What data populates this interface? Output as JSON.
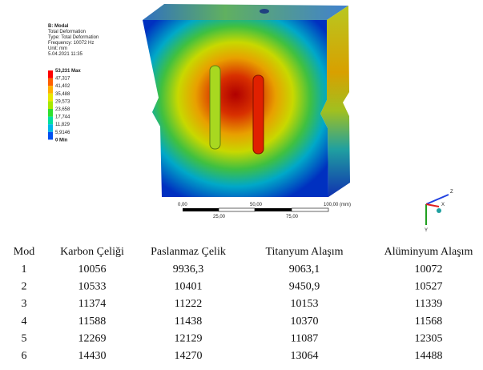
{
  "figure": {
    "legend_header": [
      "B: Modal",
      "Total Deformation",
      "Type: Total Deformation",
      "Frequency: 10072 Hz",
      "Unit: mm",
      "5.04.2021 11:35"
    ],
    "legend_labels": [
      "53,231 Max",
      "47,317",
      "41,402",
      "35,488",
      "29,573",
      "23,658",
      "17,744",
      "11,829",
      "5,9146",
      "0 Min"
    ],
    "legend_colors": [
      "#ff0000",
      "#ff6000",
      "#ffb000",
      "#e8e800",
      "#a8e800",
      "#30e030",
      "#00e0a0",
      "#00b8e8",
      "#0050f0"
    ],
    "scale_top": [
      "0,00",
      "50,00",
      "100,00 (mm)"
    ],
    "scale_bottom": [
      "25,00",
      "75,00"
    ],
    "triad": [
      "Z",
      "Y",
      "X"
    ]
  },
  "table": {
    "header": [
      "Mod",
      "Karbon Çeliği",
      "Paslanmaz Çelik",
      "Titanyum Alaşım",
      "Alüminyum Alaşım"
    ],
    "rows": [
      [
        "1",
        "10056",
        "9936,3",
        "9063,1",
        "10072"
      ],
      [
        "2",
        "10533",
        "10401",
        "9450,9",
        "10527"
      ],
      [
        "3",
        "11374",
        "11222",
        "10153",
        "11339"
      ],
      [
        "4",
        "11588",
        "11438",
        "10370",
        "11568"
      ],
      [
        "5",
        "12269",
        "12129",
        "11087",
        "12305"
      ],
      [
        "6",
        "14430",
        "14270",
        "13064",
        "14488"
      ]
    ]
  }
}
